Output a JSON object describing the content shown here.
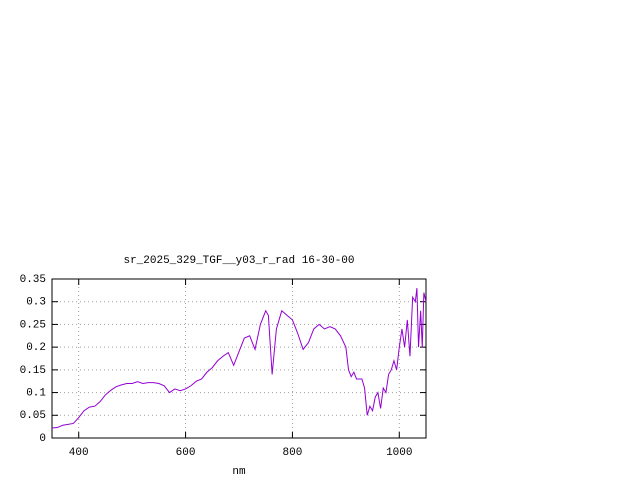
{
  "chart_data": {
    "type": "line",
    "title": "sr_2025_329_TGF__y03_r_rad 16-30-00",
    "x_label": "nm",
    "x": [
      350,
      360,
      370,
      380,
      390,
      400,
      410,
      420,
      430,
      440,
      450,
      460,
      470,
      480,
      490,
      500,
      510,
      520,
      530,
      540,
      550,
      560,
      570,
      580,
      590,
      600,
      610,
      620,
      630,
      640,
      650,
      660,
      670,
      680,
      690,
      700,
      710,
      720,
      730,
      740,
      750,
      755,
      762,
      770,
      780,
      790,
      800,
      810,
      820,
      830,
      840,
      850,
      860,
      870,
      880,
      890,
      900,
      905,
      910,
      915,
      920,
      930,
      935,
      940,
      945,
      950,
      955,
      960,
      965,
      970,
      975,
      980,
      985,
      990,
      995,
      1000,
      1005,
      1010,
      1015,
      1020,
      1025,
      1030,
      1033,
      1036,
      1040,
      1043,
      1046,
      1050
    ],
    "series": [
      {
        "name": "rad",
        "color": "#9400d3",
        "values": [
          0.022,
          0.023,
          0.028,
          0.03,
          0.032,
          0.045,
          0.06,
          0.068,
          0.07,
          0.08,
          0.095,
          0.105,
          0.113,
          0.117,
          0.12,
          0.12,
          0.124,
          0.12,
          0.122,
          0.122,
          0.12,
          0.115,
          0.1,
          0.108,
          0.104,
          0.108,
          0.115,
          0.125,
          0.13,
          0.145,
          0.155,
          0.17,
          0.18,
          0.188,
          0.16,
          0.19,
          0.22,
          0.225,
          0.195,
          0.25,
          0.28,
          0.27,
          0.14,
          0.24,
          0.28,
          0.27,
          0.26,
          0.23,
          0.195,
          0.21,
          0.24,
          0.25,
          0.24,
          0.245,
          0.24,
          0.225,
          0.2,
          0.15,
          0.135,
          0.145,
          0.13,
          0.13,
          0.11,
          0.05,
          0.07,
          0.06,
          0.09,
          0.1,
          0.065,
          0.11,
          0.1,
          0.14,
          0.15,
          0.17,
          0.15,
          0.2,
          0.24,
          0.2,
          0.26,
          0.18,
          0.31,
          0.3,
          0.33,
          0.2,
          0.28,
          0.2,
          0.32,
          0.3
        ]
      }
    ],
    "xlim": [
      350,
      1050
    ],
    "ylim": [
      0,
      0.35
    ],
    "xticks": [
      400,
      600,
      800,
      1000
    ],
    "yticks": [
      0,
      0.05,
      0.1,
      0.15,
      0.2,
      0.25,
      0.3,
      0.35
    ],
    "grid": true
  }
}
